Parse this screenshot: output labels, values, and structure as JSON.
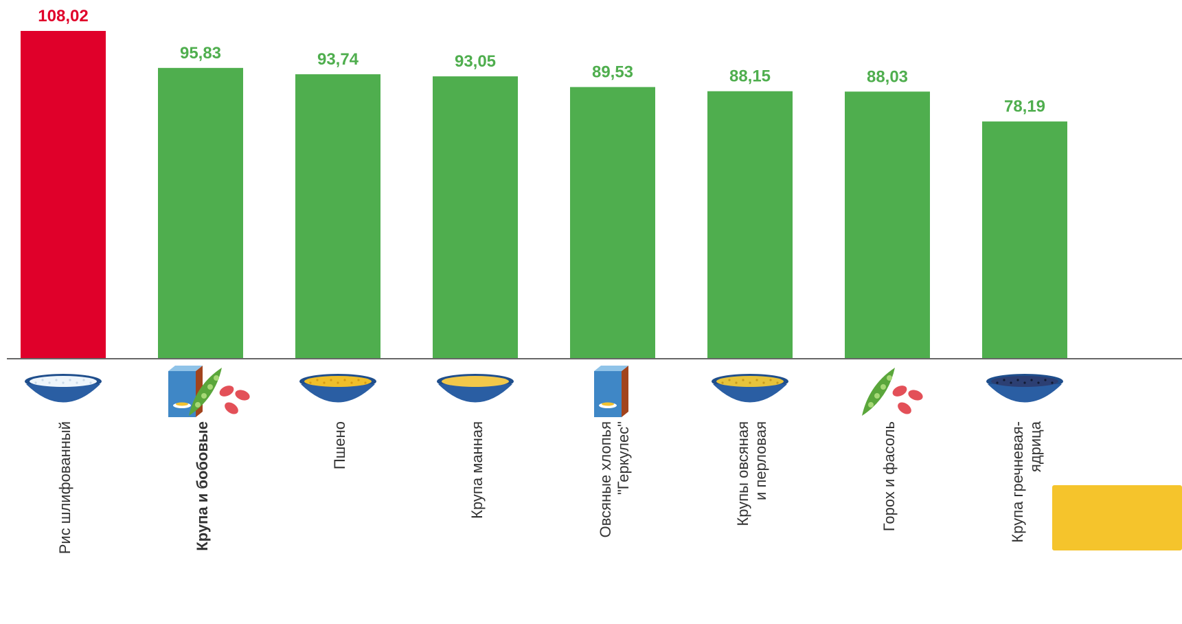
{
  "chart_data": {
    "type": "bar",
    "categories": [
      "Рис шлифованный",
      "Крупа и бобовые",
      "Пшено",
      "Крупа манная",
      "Овсяные хлопья \"Геркулес\"",
      "Крупы овсяная и перловая",
      "Горох и фасоль",
      "Крупа гречневая-ядрица"
    ],
    "category_lines": [
      [
        "Рис шлифованный"
      ],
      [
        "Крупа и бобовые"
      ],
      [
        "Пшено"
      ],
      [
        "Крупа манная"
      ],
      [
        "Овсяные хлопья",
        "\"Геркулес\""
      ],
      [
        "Крупы овсяная",
        "и перловая"
      ],
      [
        "Горох и фасоль"
      ],
      [
        "Крупа гречневая-",
        "ядрица"
      ]
    ],
    "category_bold": [
      false,
      true,
      false,
      false,
      false,
      false,
      false,
      false
    ],
    "icons": [
      "rice-bowl-icon",
      "cereal-box-beans-icon",
      "millet-bowl-icon",
      "semolina-bowl-icon",
      "oat-flakes-box-icon",
      "oat-barley-bowl-icon",
      "pea-pod-beans-icon",
      "buckwheat-bowl-icon"
    ],
    "values": [
      108.02,
      95.83,
      93.74,
      93.05,
      89.53,
      88.15,
      88.03,
      78.19
    ],
    "value_labels": [
      "108,02",
      "95,83",
      "93,74",
      "93,05",
      "89,53",
      "88,15",
      "88,03",
      "78,19"
    ],
    "highlight_index": 0,
    "colors": {
      "highlight": "#e0002a",
      "default": "#4fae4e",
      "axis": "#666666"
    },
    "title": "",
    "xlabel": "",
    "ylabel": "",
    "ylim": [
      0,
      108.02
    ],
    "grid": false,
    "legend": "none"
  }
}
